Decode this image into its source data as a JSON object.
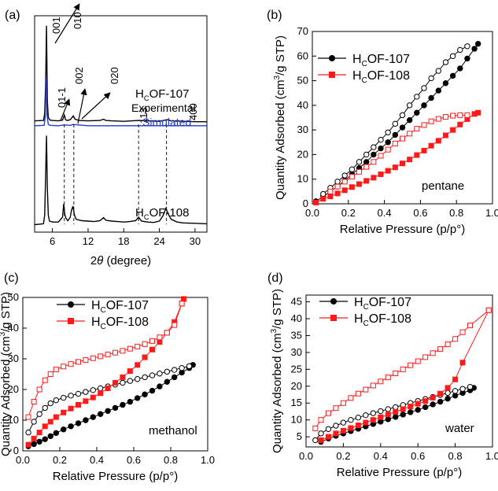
{
  "chart_data": [
    {
      "panel": "(a)",
      "type": "line",
      "xlabel_pre": "2",
      "xlabel_theta": "θ",
      "xlabel_post": " (degree)",
      "xticks": [
        "6",
        "12",
        "18",
        "24",
        "30"
      ],
      "xlim": [
        3,
        32
      ],
      "legend": {
        "top": "OF-107",
        "experimental": "Experimental",
        "simulated": "Simulated",
        "bottom": "OF-108"
      },
      "subscript": "C",
      "prefix": "H",
      "series": [
        {
          "name": "Experimental",
          "color": "#000000",
          "x": [
            3,
            4.5,
            4.7,
            4.85,
            5.0,
            5.15,
            5.3,
            5.6,
            6,
            7,
            7.7,
            8.0,
            8.2,
            8.5,
            9,
            9.3,
            9.5,
            9.8,
            10.5,
            12,
            14,
            14.6,
            15,
            16,
            18,
            20.5,
            22,
            24,
            25.3,
            26,
            28,
            30,
            32
          ],
          "y": [
            1.2,
            1.3,
            3,
            10,
            24,
            6,
            2,
            1.4,
            1.3,
            1.2,
            1.4,
            2.6,
            1.5,
            1.3,
            1.5,
            2.0,
            2.4,
            1.6,
            1.3,
            1.2,
            1.3,
            1.6,
            1.3,
            1.2,
            1.1,
            1.3,
            1.2,
            1.1,
            1.5,
            1.2,
            1.1,
            1.0,
            1.0
          ]
        },
        {
          "name": "Simulated",
          "color": "#1f3bd0",
          "x": [
            3,
            4.6,
            4.8,
            4.95,
            5.1,
            5.3,
            5.6,
            7,
            8,
            9,
            9.5,
            12,
            20,
            25,
            32
          ],
          "y": [
            0.6,
            0.7,
            3,
            12,
            3,
            0.9,
            0.7,
            0.6,
            0.8,
            0.7,
            0.9,
            0.6,
            0.6,
            0.6,
            0.6
          ]
        },
        {
          "name": "HCOF-108",
          "color": "#000000",
          "x": [
            3,
            4.5,
            4.7,
            4.85,
            5.0,
            5.15,
            5.3,
            5.5,
            6,
            7,
            7.7,
            7.9,
            8.1,
            8.3,
            8.6,
            9,
            9.2,
            9.45,
            9.7,
            10,
            11,
            12,
            13,
            14,
            14.6,
            15,
            16,
            17,
            18,
            19,
            20,
            20.5,
            21,
            22,
            23,
            24,
            24.6,
            25.1,
            25.5,
            26,
            27,
            28,
            30,
            32
          ],
          "y": [
            0.8,
            1.0,
            3,
            12,
            21,
            9,
            3,
            1.6,
            1.4,
            1.4,
            2.5,
            5.5,
            3,
            2.2,
            1.7,
            2.5,
            4,
            5,
            3,
            2,
            1.7,
            1.6,
            1.5,
            1.7,
            2.4,
            1.8,
            1.6,
            1.5,
            1.4,
            1.5,
            1.7,
            2.5,
            1.6,
            1.4,
            1.3,
            1.6,
            2.8,
            4.5,
            3.2,
            2.0,
            1.4,
            1.2,
            1.1,
            1.0
          ]
        }
      ],
      "peaks": [
        {
          "label": "001",
          "x": 4.9
        },
        {
          "label": "010",
          "x": 5.2
        },
        {
          "label": "01-1",
          "x": 8.0
        },
        {
          "label": "002",
          "x": 9.3
        },
        {
          "label": "020",
          "x": 9.6
        },
        {
          "label": "113",
          "x": 20.5
        },
        {
          "label": "400",
          "x": 25.2
        }
      ]
    },
    {
      "panel": "(b)",
      "type": "scatter",
      "ylabel_main": "Quantity Adsorbed (cm",
      "ylabel_sup": "3",
      "ylabel_end": "/g STP)",
      "xlabel": "Relative Pressure (p/p°)",
      "xlim": [
        0,
        1.0
      ],
      "ylim": [
        0,
        70
      ],
      "xticks": [
        "0.0",
        "0.2",
        "0.4",
        "0.6",
        "0.8",
        "1.0"
      ],
      "yticks": [
        "0",
        "10",
        "20",
        "30",
        "40",
        "50",
        "60",
        "70"
      ],
      "annotation": "pentane",
      "legend": [
        "HCOF-107",
        "HCOF-108"
      ],
      "series": [
        {
          "name": "HCOF-107 adsorption",
          "color": "#000000",
          "marker": "circle",
          "filled": true,
          "x": [
            0.02,
            0.06,
            0.1,
            0.14,
            0.18,
            0.22,
            0.26,
            0.3,
            0.34,
            0.38,
            0.42,
            0.46,
            0.5,
            0.54,
            0.58,
            0.62,
            0.66,
            0.7,
            0.74,
            0.78,
            0.82,
            0.86,
            0.9,
            0.92
          ],
          "y": [
            1,
            3,
            5,
            7,
            9.5,
            12,
            14.5,
            17,
            20,
            22.5,
            25,
            28,
            31,
            34,
            37,
            40,
            43,
            46,
            49,
            52,
            55,
            59,
            63,
            65
          ]
        },
        {
          "name": "HCOF-107 desorption",
          "color": "#000000",
          "marker": "circle",
          "filled": false,
          "x": [
            0.06,
            0.1,
            0.14,
            0.18,
            0.22,
            0.26,
            0.3,
            0.34,
            0.38,
            0.42,
            0.46,
            0.5,
            0.54,
            0.58,
            0.62,
            0.66,
            0.7,
            0.74,
            0.78,
            0.82,
            0.86
          ],
          "y": [
            4,
            6.5,
            9,
            11.5,
            14,
            17,
            20,
            23,
            26,
            29,
            32.5,
            36,
            40,
            43.5,
            47,
            51,
            54,
            57.5,
            60,
            62.5,
            64
          ]
        },
        {
          "name": "HCOF-108 adsorption",
          "color": "#ff1a1a",
          "marker": "square",
          "filled": true,
          "x": [
            0.02,
            0.06,
            0.1,
            0.14,
            0.18,
            0.22,
            0.26,
            0.3,
            0.34,
            0.38,
            0.42,
            0.46,
            0.5,
            0.54,
            0.58,
            0.62,
            0.66,
            0.7,
            0.74,
            0.78,
            0.82,
            0.86,
            0.9,
            0.92
          ],
          "y": [
            0.5,
            2,
            3,
            4.2,
            5.5,
            6.8,
            8,
            9.3,
            10.6,
            12,
            13.4,
            14.8,
            16.4,
            18,
            19.8,
            21.6,
            23.6,
            25.6,
            27.8,
            30,
            32.2,
            34.4,
            36.5,
            37
          ]
        },
        {
          "name": "HCOF-108 desorption",
          "color": "#ff1a1a",
          "marker": "square",
          "filled": false,
          "x": [
            0.1,
            0.14,
            0.18,
            0.22,
            0.26,
            0.3,
            0.34,
            0.38,
            0.42,
            0.46,
            0.5,
            0.54,
            0.58,
            0.62,
            0.66,
            0.7,
            0.74,
            0.78,
            0.82,
            0.86
          ],
          "y": [
            5,
            7,
            9,
            11,
            13,
            15,
            17,
            19.5,
            22,
            24.5,
            26.5,
            28.5,
            30.5,
            32,
            33.5,
            34.5,
            35.3,
            35.8,
            36,
            36
          ]
        }
      ]
    },
    {
      "panel": "(c)",
      "type": "scatter",
      "ylabel_main": "Quantity Adsorbed (cm",
      "ylabel_sup": "3",
      "ylabel_end": "/g STP)",
      "xlabel": "Relative Pressure (p/p°)",
      "xlim": [
        0,
        1.0
      ],
      "ylim": [
        0,
        50
      ],
      "xticks": [
        "0.0",
        "0.2",
        "0.4",
        "0.6",
        "0.8",
        "1.0"
      ],
      "yticks": [
        "0",
        "10",
        "20",
        "30",
        "40",
        "50"
      ],
      "annotation": "methanol",
      "legend": [
        "HCOF-107",
        "HCOF-108"
      ],
      "series": [
        {
          "name": "HCOF-107 adsorption",
          "color": "#000000",
          "marker": "circle",
          "filled": true,
          "x": [
            0.03,
            0.06,
            0.09,
            0.12,
            0.15,
            0.18,
            0.22,
            0.26,
            0.3,
            0.34,
            0.38,
            0.42,
            0.46,
            0.5,
            0.54,
            0.58,
            0.62,
            0.66,
            0.7,
            0.74,
            0.78,
            0.82,
            0.86,
            0.9,
            0.92
          ],
          "y": [
            1.5,
            2.2,
            3,
            3.8,
            4.8,
            5.8,
            7,
            8,
            9,
            10,
            11,
            12,
            13,
            14,
            15,
            16,
            17.2,
            18.4,
            19.6,
            21,
            22.5,
            24,
            25.5,
            27,
            28
          ]
        },
        {
          "name": "HCOF-107 desorption",
          "color": "#000000",
          "marker": "circle",
          "filled": false,
          "x": [
            0.03,
            0.06,
            0.09,
            0.12,
            0.15,
            0.18,
            0.22,
            0.26,
            0.3,
            0.34,
            0.38,
            0.42,
            0.46,
            0.5,
            0.54,
            0.58,
            0.62,
            0.66,
            0.7,
            0.74,
            0.78,
            0.82,
            0.86,
            0.9
          ],
          "y": [
            6,
            9.5,
            12,
            14,
            15.5,
            16.5,
            17.3,
            18,
            18.6,
            19.2,
            19.8,
            20.4,
            21,
            21.6,
            22.2,
            22.8,
            23.4,
            24,
            24.6,
            25.2,
            25.8,
            26.4,
            27,
            27.6
          ]
        },
        {
          "name": "HCOF-108 adsorption",
          "color": "#ff1a1a",
          "marker": "square",
          "filled": true,
          "x": [
            0.03,
            0.06,
            0.09,
            0.12,
            0.15,
            0.18,
            0.22,
            0.26,
            0.3,
            0.34,
            0.38,
            0.42,
            0.46,
            0.5,
            0.54,
            0.58,
            0.62,
            0.66,
            0.7,
            0.74,
            0.78,
            0.82,
            0.86,
            0.87
          ],
          "y": [
            2,
            4,
            6,
            8,
            9.5,
            11,
            12.5,
            13.8,
            15,
            16.2,
            17.4,
            18.8,
            20.4,
            22.2,
            24,
            26,
            28,
            30.5,
            33,
            35.5,
            38.5,
            42,
            48,
            49.5
          ]
        },
        {
          "name": "HCOF-108 desorption",
          "color": "#ff1a1a",
          "marker": "square",
          "filled": false,
          "x": [
            0.03,
            0.06,
            0.09,
            0.12,
            0.15,
            0.18,
            0.22,
            0.26,
            0.3,
            0.34,
            0.38,
            0.42,
            0.46,
            0.5,
            0.54,
            0.58,
            0.62,
            0.66,
            0.7,
            0.74,
            0.78,
            0.82,
            0.86
          ],
          "y": [
            11,
            16,
            20,
            23,
            25,
            26.5,
            27.5,
            28.3,
            29,
            29.6,
            30.2,
            30.8,
            31.4,
            32,
            32.6,
            33.3,
            34,
            34.8,
            35.8,
            37,
            38.5,
            41,
            48
          ]
        }
      ]
    },
    {
      "panel": "(d)",
      "type": "scatter",
      "ylabel_main": "Quantity Adsorbed (cm",
      "ylabel_sup": "3",
      "ylabel_end": "/g STP)",
      "xlabel": "Relative Pressure (p/p°)",
      "xlim": [
        0,
        1.0
      ],
      "ylim": [
        2,
        47
      ],
      "xticks": [
        "0.0",
        "0.2",
        "0.4",
        "0.6",
        "0.8",
        "1.0"
      ],
      "yticks": [
        "5",
        "10",
        "15",
        "20",
        "25",
        "30",
        "35",
        "40",
        "45"
      ],
      "annotation": "water",
      "legend": [
        "HCOF-107",
        "HCOF-108"
      ],
      "series": [
        {
          "name": "HCOF-107 adsorption",
          "color": "#000000",
          "marker": "circle",
          "filled": true,
          "x": [
            0.08,
            0.12,
            0.16,
            0.2,
            0.24,
            0.28,
            0.32,
            0.36,
            0.4,
            0.44,
            0.48,
            0.52,
            0.56,
            0.6,
            0.64,
            0.68,
            0.72,
            0.76,
            0.8,
            0.84,
            0.88,
            0.9
          ],
          "y": [
            3.5,
            4.5,
            5.3,
            6,
            6.7,
            7.4,
            8.1,
            8.8,
            9.5,
            10.2,
            10.9,
            11.6,
            12.3,
            13,
            13.8,
            14.6,
            15.4,
            16.3,
            17.2,
            18,
            18.8,
            19.5
          ]
        },
        {
          "name": "HCOF-107 desorption",
          "color": "#000000",
          "marker": "circle",
          "filled": false,
          "x": [
            0.05,
            0.08,
            0.12,
            0.16,
            0.2,
            0.24,
            0.28,
            0.32,
            0.36,
            0.4,
            0.44,
            0.48,
            0.52,
            0.56,
            0.6,
            0.64,
            0.68,
            0.72,
            0.76,
            0.8,
            0.84,
            0.88
          ],
          "y": [
            4,
            6,
            7.3,
            8.3,
            9.2,
            10,
            10.7,
            11.4,
            12,
            12.6,
            13.2,
            13.8,
            14.4,
            15,
            15.6,
            16.2,
            16.8,
            17.4,
            18,
            18.6,
            19.2,
            19.8
          ]
        },
        {
          "name": "HCOF-108 adsorption",
          "color": "#ff1a1a",
          "marker": "square",
          "filled": true,
          "x": [
            0.08,
            0.12,
            0.16,
            0.2,
            0.24,
            0.28,
            0.32,
            0.36,
            0.4,
            0.44,
            0.48,
            0.52,
            0.56,
            0.6,
            0.64,
            0.68,
            0.72,
            0.76,
            0.8,
            0.84,
            0.98
          ],
          "y": [
            4,
            5,
            6,
            6.8,
            7.6,
            8.4,
            9.2,
            10,
            10.8,
            11.6,
            12.4,
            13.2,
            14,
            14.8,
            15.6,
            16.6,
            17.8,
            19.5,
            22,
            27,
            42.5
          ]
        },
        {
          "name": "HCOF-108 desorption",
          "color": "#ff1a1a",
          "marker": "square",
          "filled": false,
          "x": [
            0.05,
            0.08,
            0.12,
            0.16,
            0.2,
            0.24,
            0.28,
            0.32,
            0.36,
            0.4,
            0.44,
            0.48,
            0.52,
            0.56,
            0.6,
            0.64,
            0.68,
            0.72,
            0.76,
            0.8,
            0.84,
            0.88,
            0.98
          ],
          "y": [
            7.5,
            10,
            12,
            13.5,
            15,
            16.5,
            17.8,
            19,
            20.2,
            21.4,
            22.6,
            23.8,
            25,
            26.2,
            27.4,
            28.6,
            29.8,
            31,
            32.4,
            34,
            36,
            38,
            42.5
          ]
        }
      ]
    }
  ]
}
